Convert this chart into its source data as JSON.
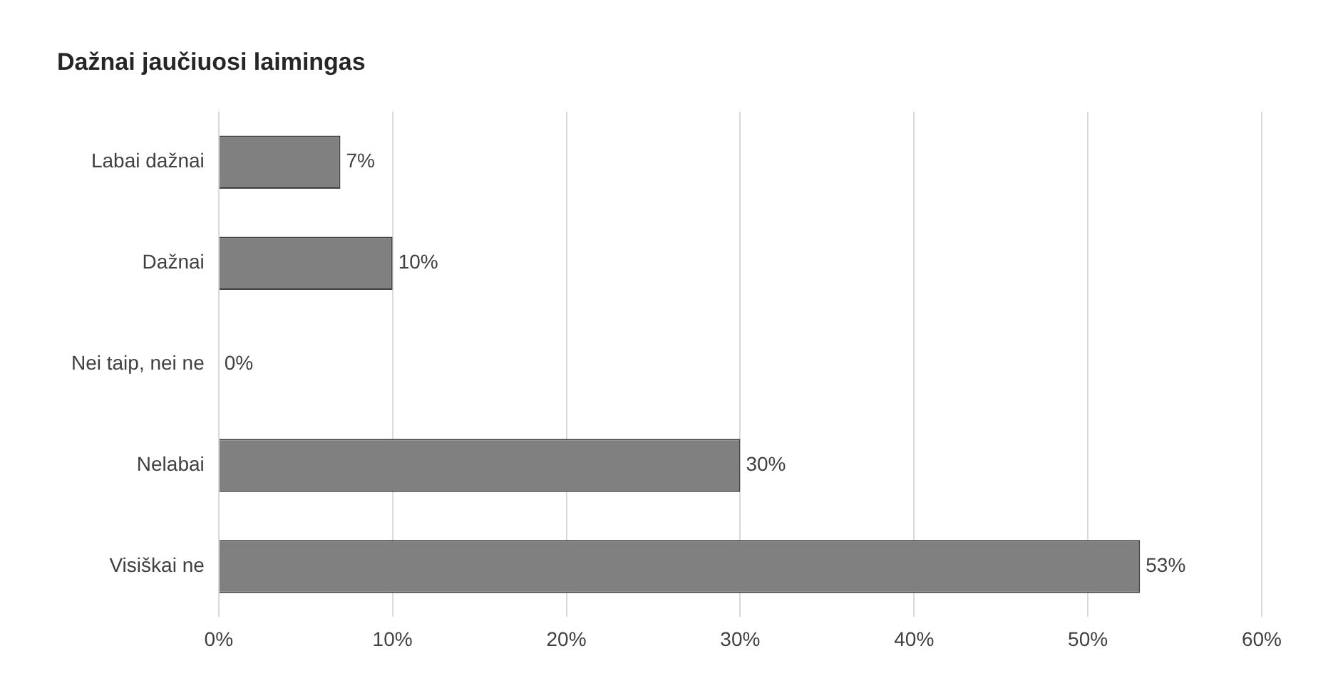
{
  "chart_data": {
    "type": "bar",
    "orientation": "horizontal",
    "title": "Dažnai jaučiuosi laimingas",
    "categories": [
      "Labai dažnai",
      "Dažnai",
      "Nei taip, nei ne",
      "Nelabai",
      "Visiškai ne"
    ],
    "values": [
      7,
      10,
      0,
      30,
      53
    ],
    "value_labels": [
      "7%",
      "10%",
      "0%",
      "30%",
      "53%"
    ],
    "color": "#808080",
    "xlim": [
      0,
      60
    ],
    "xticks": [
      {
        "value": 0,
        "label": "0%"
      },
      {
        "value": 10,
        "label": "10%"
      },
      {
        "value": 20,
        "label": "20%"
      },
      {
        "value": 30,
        "label": "30%"
      },
      {
        "value": 40,
        "label": "40%"
      },
      {
        "value": 50,
        "label": "50%"
      },
      {
        "value": 60,
        "label": "60%"
      }
    ],
    "grid": "x",
    "legend": false
  }
}
